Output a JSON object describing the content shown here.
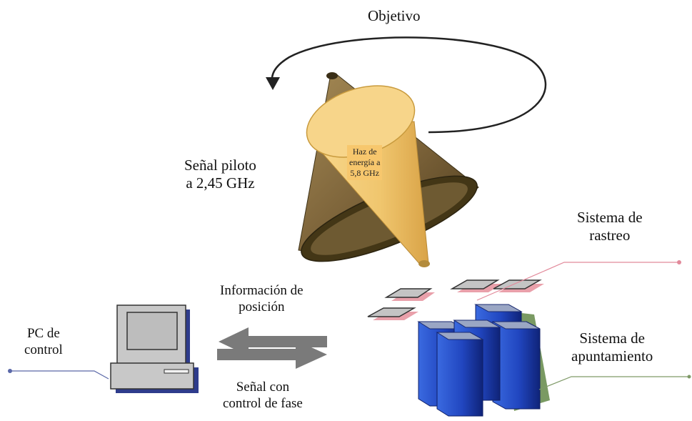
{
  "labels": {
    "objetivo": "Objetivo",
    "senal_piloto": [
      "Señal piloto",
      "a 2,45 GHz"
    ],
    "haz": [
      "Haz de",
      "energía a",
      "5,8 GHz"
    ],
    "sistema_rastreo": [
      "Sistema de",
      "rastreo"
    ],
    "sistema_apuntamiento": [
      "Sistema de",
      "apuntamiento"
    ],
    "informacion_posicion": [
      "Información de",
      "posición"
    ],
    "senal_control_fase": [
      "Señal con",
      "control de fase"
    ],
    "pc_control": [
      "PC de",
      "control"
    ]
  },
  "colors": {
    "outer_cone": "#8c7448",
    "outer_cone_dark": "#3e3218",
    "inner_cone": "#f2cd7b",
    "inner_cone_edge": "#c99b3e",
    "panel_fill": "#c4c4c4",
    "panel_shadow": "#e9a0aa",
    "column_blue": "#2a52cc",
    "column_dark": "#142c8a",
    "column_shadow": "#7a9a63",
    "arrow_gray": "#7a7a7a",
    "leader_line_pink": "#e28a9b",
    "leader_line_green": "#7f9a68",
    "leader_line_blue": "#5a68a8",
    "pc_gray": "#c8c8c8",
    "pc_shadow": "#2e3c8c"
  }
}
